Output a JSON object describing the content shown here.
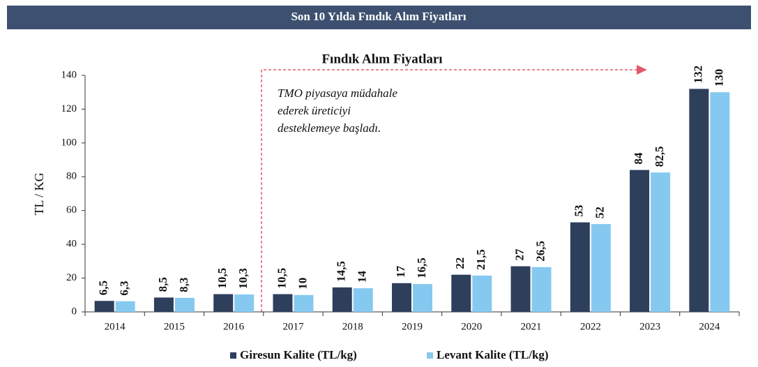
{
  "chart_data": {
    "type": "bar",
    "banner": "Son 10 Yılda Fındık Alım Fiyatları",
    "title": "Fındık Alım Fiyatları",
    "annotation": [
      "TMO piyasaya müdahale",
      "ederek üreticiyi",
      "desteklemeye başladı."
    ],
    "y_label": "TL / KG",
    "categories": [
      "2014",
      "2015",
      "2016",
      "2017",
      "2018",
      "2019",
      "2020",
      "2021",
      "2022",
      "2023",
      "2024"
    ],
    "series": [
      {
        "name": "Giresun Kalite (TL/kg)",
        "color": "#2e3f5c",
        "values": [
          6.5,
          8.5,
          10.5,
          10.5,
          14.5,
          17,
          22,
          27,
          53,
          84,
          132
        ],
        "value_labels": [
          "6,5",
          "8,5",
          "10,5",
          "10,5",
          "14,5",
          "17",
          "22",
          "27",
          "53",
          "84",
          "132"
        ]
      },
      {
        "name": "Levant Kalite (TL/kg)",
        "color": "#86c9f0",
        "values": [
          6.3,
          8.3,
          10.3,
          10,
          14,
          16.5,
          21.5,
          26.5,
          52,
          82.5,
          130
        ],
        "value_labels": [
          "6,3",
          "8,3",
          "10,3",
          "10",
          "14",
          "16,5",
          "21,5",
          "26,5",
          "52",
          "82,5",
          "130"
        ]
      }
    ],
    "ylim": [
      0,
      140
    ],
    "yticks": [
      0,
      20,
      40,
      60,
      80,
      100,
      120,
      140
    ],
    "grid": false,
    "legend": "bottom"
  }
}
